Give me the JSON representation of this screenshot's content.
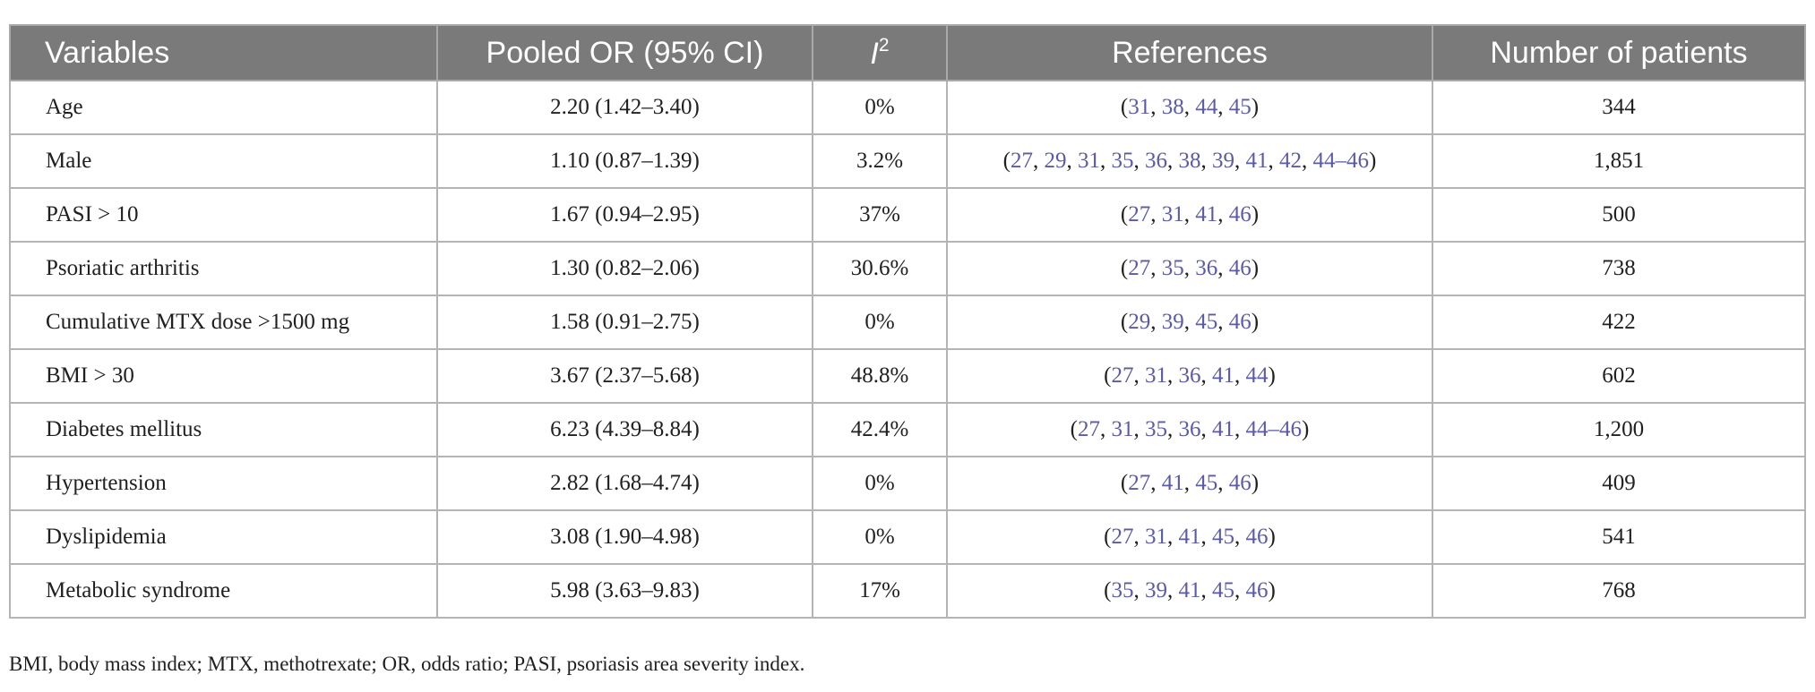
{
  "headers": {
    "variables": "Variables",
    "pooled_or": "Pooled OR (95% CI)",
    "i2_letter": "I",
    "i2_sup": "2",
    "references": "References",
    "patients": "Number of patients"
  },
  "rows": [
    {
      "variable": "Age",
      "or": "2.20 (1.42–3.40)",
      "i2": "0%",
      "refs": [
        "31",
        "38",
        "44",
        "45"
      ],
      "patients": "344"
    },
    {
      "variable": "Male",
      "or": "1.10 (0.87–1.39)",
      "i2": "3.2%",
      "refs": [
        "27",
        "29",
        "31",
        "35",
        "36",
        "38",
        "39",
        "41",
        "42",
        "44–46"
      ],
      "patients": "1,851"
    },
    {
      "variable": "PASI > 10",
      "or": "1.67 (0.94–2.95)",
      "i2": "37%",
      "refs": [
        "27",
        "31",
        "41",
        "46"
      ],
      "patients": "500"
    },
    {
      "variable": "Psoriatic arthritis",
      "or": "1.30 (0.82–2.06)",
      "i2": "30.6%",
      "refs": [
        "27",
        "35",
        "36",
        "46"
      ],
      "patients": "738"
    },
    {
      "variable": "Cumulative MTX dose >1500 mg",
      "or": "1.58 (0.91–2.75)",
      "i2": "0%",
      "refs": [
        "29",
        "39",
        "45",
        "46"
      ],
      "patients": "422"
    },
    {
      "variable": "BMI > 30",
      "or": "3.67 (2.37–5.68)",
      "i2": "48.8%",
      "refs": [
        "27",
        "31",
        "36",
        "41",
        "44"
      ],
      "patients": "602"
    },
    {
      "variable": "Diabetes mellitus",
      "or": "6.23 (4.39–8.84)",
      "i2": "42.4%",
      "refs": [
        "27",
        "31",
        "35",
        "36",
        "41",
        "44–46"
      ],
      "patients": "1,200"
    },
    {
      "variable": "Hypertension",
      "or": "2.82 (1.68–4.74)",
      "i2": "0%",
      "refs": [
        "27",
        "41",
        "45",
        "46"
      ],
      "patients": "409"
    },
    {
      "variable": "Dyslipidemia",
      "or": "3.08 (1.90–4.98)",
      "i2": "0%",
      "refs": [
        "27",
        "31",
        "41",
        "45",
        "46"
      ],
      "patients": "541"
    },
    {
      "variable": "Metabolic syndrome",
      "or": "5.98 (3.63–9.83)",
      "i2": "17%",
      "refs": [
        "35",
        "39",
        "41",
        "45",
        "46"
      ],
      "patients": "768"
    }
  ],
  "footnote": "BMI, body mass index; MTX, methotrexate; OR, odds ratio; PASI, psoriasis area severity index.",
  "colors": {
    "header_bg": "#7a7a7a",
    "header_text": "#ffffff",
    "reference_link": "#5a5aa8",
    "grid": "#b4b4b4"
  }
}
